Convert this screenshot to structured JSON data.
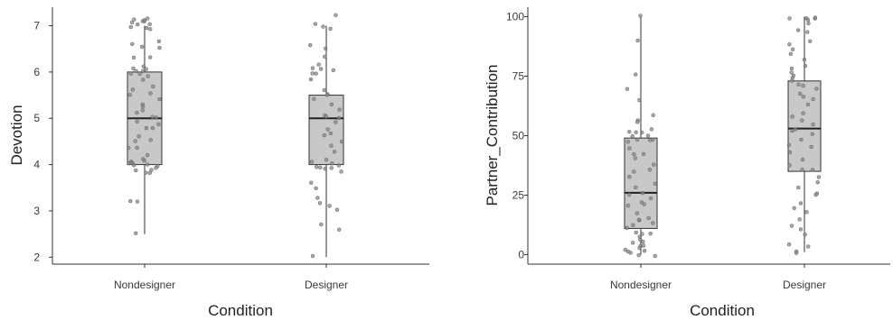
{
  "colors": {
    "axis": "#333333",
    "box_fill": "#c8c8c8",
    "box_stroke": "#333333",
    "point": "#8a8a8a",
    "point_stroke": "#555555"
  },
  "chart_data": [
    {
      "type": "box",
      "xlabel": "Condition",
      "ylabel": "Devotion",
      "ylim": [
        1.85,
        7.4
      ],
      "yticks": [
        2,
        3,
        4,
        5,
        6,
        7
      ],
      "categories": [
        "Nondesigner",
        "Designer"
      ],
      "grid": false,
      "boxes": [
        {
          "category": "Nondesigner",
          "min": 2.5,
          "q1": 4.0,
          "median": 5.0,
          "q3": 6.0,
          "max": 7.0
        },
        {
          "category": "Designer",
          "min": 2.0,
          "q1": 4.0,
          "median": 5.0,
          "q3": 5.5,
          "max": 7.0
        }
      ],
      "points": [
        [
          7.1,
          7.05,
          7.1,
          7.0,
          7.15,
          7.05,
          7.0,
          7.1,
          6.9,
          6.95,
          7.1,
          6.7,
          6.6,
          6.5,
          6.55,
          6.3,
          6.35,
          6.0,
          6.05,
          6.1,
          5.95,
          6.0,
          6.05,
          6.1,
          5.9,
          5.7,
          5.6,
          5.8,
          5.5,
          5.55,
          5.4,
          5.3,
          5.2,
          5.25,
          5.1,
          5.0,
          4.95,
          5.05,
          4.9,
          4.8,
          4.75,
          4.6,
          4.5,
          4.55,
          4.4,
          4.35,
          4.2,
          4.1,
          4.15,
          4.0,
          4.05,
          3.95,
          4.0,
          3.9,
          3.85,
          3.9,
          3.95,
          4.0,
          3.85,
          3.9,
          4.05,
          3.2,
          3.2,
          2.5
        ],
        [
          7.2,
          7.0,
          6.9,
          6.95,
          6.5,
          6.6,
          6.35,
          6.1,
          6.05,
          6.15,
          6.0,
          6.05,
          5.95,
          5.85,
          5.6,
          5.55,
          5.5,
          5.45,
          5.3,
          5.2,
          5.1,
          5.0,
          5.05,
          4.95,
          4.8,
          4.7,
          4.6,
          4.5,
          4.4,
          4.3,
          4.1,
          4.0,
          4.05,
          3.95,
          3.9,
          4.0,
          3.95,
          3.9,
          3.85,
          3.6,
          3.5,
          3.3,
          3.2,
          3.1,
          3.0,
          2.7,
          2.6,
          2.0
        ]
      ]
    },
    {
      "type": "box",
      "xlabel": "Condition",
      "ylabel": "Partner_Contribution",
      "ylim": [
        -4,
        104
      ],
      "yticks": [
        0,
        25,
        50,
        75,
        100
      ],
      "categories": [
        "Nondesigner",
        "Designer"
      ],
      "grid": false,
      "boxes": [
        {
          "category": "Nondesigner",
          "min": 0,
          "q1": 11,
          "median": 26,
          "q3": 49,
          "max": 100
        },
        {
          "category": "Designer",
          "min": 1,
          "q1": 35,
          "median": 53,
          "q3": 73,
          "max": 100
        }
      ],
      "points": [
        [
          100,
          90,
          75,
          70,
          65,
          58,
          56,
          55,
          52,
          52,
          51,
          51,
          50,
          50,
          49,
          49,
          48,
          47,
          45,
          43,
          42,
          40,
          38,
          36,
          35,
          33,
          30,
          28,
          26,
          25,
          24,
          22,
          21,
          20,
          18,
          16,
          15,
          14,
          13,
          12,
          11,
          10,
          9,
          8,
          7,
          6,
          5,
          5,
          4,
          3,
          2,
          2,
          1,
          1,
          0,
          0,
          0
        ],
        [
          100,
          100,
          100,
          99,
          98,
          97,
          95,
          93,
          90,
          88,
          86,
          84,
          82,
          80,
          78,
          76,
          75,
          74,
          73,
          72,
          71,
          70,
          68,
          66,
          65,
          63,
          60,
          58,
          56,
          55,
          53,
          52,
          50,
          48,
          46,
          45,
          43,
          40,
          38,
          36,
          35,
          33,
          30,
          28,
          26,
          25,
          22,
          20,
          18,
          15,
          12,
          10,
          8,
          5,
          3,
          2,
          1
        ]
      ]
    }
  ]
}
